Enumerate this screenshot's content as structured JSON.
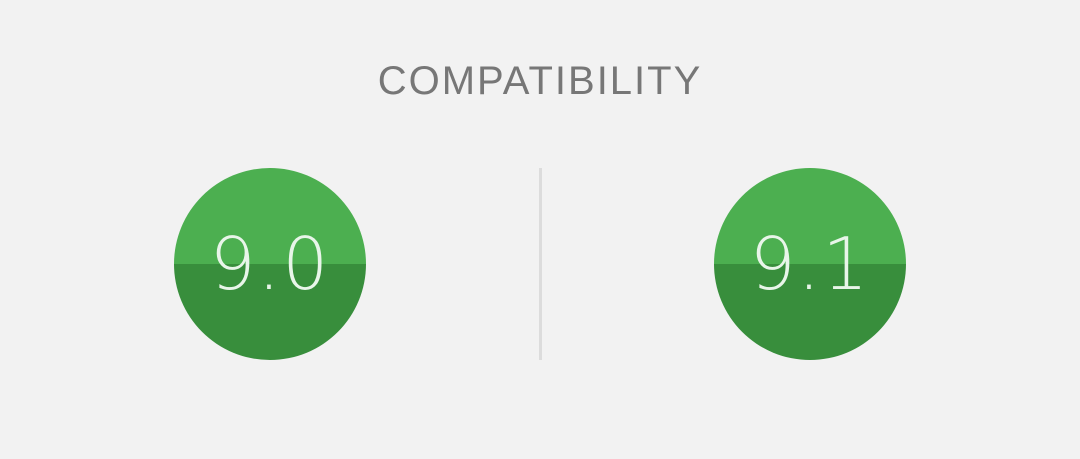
{
  "header": {
    "title": "COMPATIBILITY"
  },
  "scores": [
    {
      "value": "9.0"
    },
    {
      "value": "9.1"
    }
  ],
  "colors": {
    "background": "#f2f2f2",
    "title_text": "#777777",
    "circle_top": "#4caf50",
    "circle_bottom": "#388e3c",
    "score_text": "#e8f5e9",
    "divider": "#dcdcdc"
  }
}
